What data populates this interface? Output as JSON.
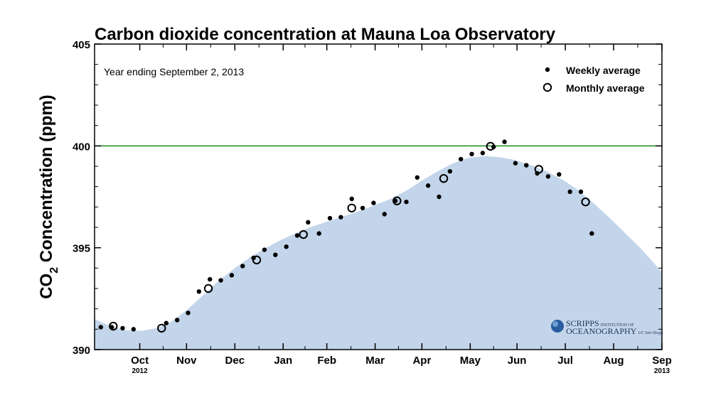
{
  "chart_data": {
    "type": "scatter",
    "title": "Carbon dioxide concentration at Mauna Loa Observatory",
    "ylabel_prefix": "CO",
    "ylabel_sub": "2",
    "ylabel_suffix": " Concentration (ppm)",
    "annotation": "Year ending September 2, 2013",
    "ylim": [
      390,
      405
    ],
    "yticks": [
      390,
      395,
      400,
      405
    ],
    "reference_line": 400,
    "reference_color": "#1a8a1a",
    "band_color": "#c3d5ea",
    "x_months": [
      {
        "label": "Oct",
        "sub": "2012",
        "day": 29
      },
      {
        "label": "Nov",
        "sub": "",
        "day": 59
      },
      {
        "label": "Dec",
        "sub": "",
        "day": 90
      },
      {
        "label": "Jan",
        "sub": "",
        "day": 121
      },
      {
        "label": "Feb",
        "sub": "",
        "day": 149
      },
      {
        "label": "Mar",
        "sub": "",
        "day": 180
      },
      {
        "label": "Apr",
        "sub": "",
        "day": 210
      },
      {
        "label": "May",
        "sub": "",
        "day": 241
      },
      {
        "label": "Jun",
        "sub": "",
        "day": 271
      },
      {
        "label": "Jul",
        "sub": "",
        "day": 302
      },
      {
        "label": "Aug",
        "sub": "",
        "day": 333
      },
      {
        "label": "Sep",
        "sub": "2013",
        "day": 364
      }
    ],
    "xlim": [
      0,
      364
    ],
    "legend": {
      "weekly": "Weekly average",
      "monthly": "Monthly average",
      "position": "top-right"
    },
    "series": [
      {
        "name": "Weekly average",
        "marker": "dot",
        "points": [
          [
            4,
            391.1
          ],
          [
            11,
            391.1
          ],
          [
            18,
            391.05
          ],
          [
            25,
            391.0
          ],
          [
            46,
            391.3
          ],
          [
            53,
            391.45
          ],
          [
            60,
            391.8
          ],
          [
            67,
            392.85
          ],
          [
            74,
            393.45
          ],
          [
            81,
            393.4
          ],
          [
            88,
            393.65
          ],
          [
            95,
            394.1
          ],
          [
            102,
            394.5
          ],
          [
            109,
            394.9
          ],
          [
            116,
            394.65
          ],
          [
            123,
            395.05
          ],
          [
            130,
            395.6
          ],
          [
            137,
            396.25
          ],
          [
            144,
            395.7
          ],
          [
            151,
            396.45
          ],
          [
            158,
            396.5
          ],
          [
            165,
            397.4
          ],
          [
            172,
            396.95
          ],
          [
            179,
            397.2
          ],
          [
            186,
            396.65
          ],
          [
            193,
            397.3
          ],
          [
            200,
            397.25
          ],
          [
            207,
            398.45
          ],
          [
            214,
            398.05
          ],
          [
            221,
            397.5
          ],
          [
            228,
            398.75
          ],
          [
            235,
            399.35
          ],
          [
            242,
            399.6
          ],
          [
            249,
            399.65
          ],
          [
            256,
            399.95
          ],
          [
            263,
            400.2
          ],
          [
            270,
            399.15
          ],
          [
            277,
            399.05
          ],
          [
            284,
            398.65
          ],
          [
            291,
            398.5
          ],
          [
            298,
            398.6
          ],
          [
            305,
            397.75
          ],
          [
            312,
            397.75
          ],
          [
            319,
            395.7
          ]
        ]
      },
      {
        "name": "Monthly average",
        "marker": "circle",
        "points": [
          [
            12,
            391.15
          ],
          [
            43,
            391.05
          ],
          [
            73,
            393.0
          ],
          [
            104,
            394.4
          ],
          [
            134,
            395.65
          ],
          [
            165,
            396.95
          ],
          [
            194,
            397.3
          ],
          [
            224,
            398.4
          ],
          [
            254,
            399.98
          ],
          [
            285,
            398.85
          ],
          [
            315,
            397.25
          ]
        ]
      },
      {
        "name": "",
        "type": "area",
        "points": [
          [
            0,
            391.5
          ],
          [
            10,
            391.15
          ],
          [
            20,
            390.95
          ],
          [
            30,
            390.92
          ],
          [
            40,
            391.05
          ],
          [
            50,
            391.4
          ],
          [
            60,
            392.0
          ],
          [
            70,
            392.7
          ],
          [
            80,
            393.4
          ],
          [
            90,
            394.0
          ],
          [
            100,
            394.55
          ],
          [
            110,
            395.0
          ],
          [
            120,
            395.4
          ],
          [
            130,
            395.75
          ],
          [
            140,
            396.05
          ],
          [
            150,
            396.3
          ],
          [
            160,
            396.55
          ],
          [
            170,
            396.8
          ],
          [
            180,
            397.1
          ],
          [
            190,
            397.4
          ],
          [
            200,
            397.8
          ],
          [
            210,
            398.3
          ],
          [
            220,
            398.75
          ],
          [
            230,
            399.15
          ],
          [
            240,
            399.42
          ],
          [
            250,
            399.5
          ],
          [
            260,
            399.45
          ],
          [
            270,
            399.3
          ],
          [
            280,
            399.05
          ],
          [
            290,
            398.75
          ],
          [
            300,
            398.35
          ],
          [
            310,
            397.85
          ],
          [
            320,
            397.2
          ],
          [
            330,
            396.5
          ],
          [
            340,
            395.75
          ],
          [
            350,
            395.0
          ],
          [
            360,
            394.15
          ],
          [
            364,
            393.8
          ]
        ]
      }
    ]
  },
  "logo": {
    "line1": "SCRIPPS",
    "line1_small": "INSTITUTION OF",
    "line2": "OCEANOGRAPHY",
    "line2_small": "UC San Diego"
  }
}
